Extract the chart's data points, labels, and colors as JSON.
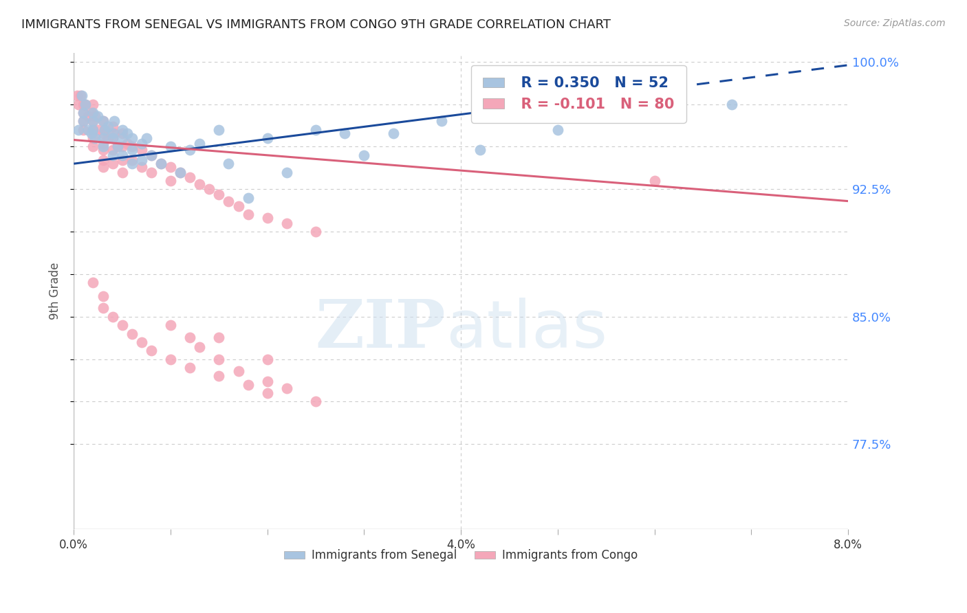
{
  "title": "IMMIGRANTS FROM SENEGAL VS IMMIGRANTS FROM CONGO 9TH GRADE CORRELATION CHART",
  "source": "Source: ZipAtlas.com",
  "ylabel": "9th Grade",
  "xlim": [
    0.0,
    0.08
  ],
  "ylim": [
    0.725,
    1.005
  ],
  "yticks": [
    0.775,
    0.8,
    0.825,
    0.85,
    0.875,
    0.9,
    0.925,
    0.95,
    0.975,
    1.0
  ],
  "ytick_labels": [
    "77.5%",
    "",
    "",
    "85.0%",
    "",
    "",
    "92.5%",
    "",
    "",
    "100.0%"
  ],
  "senegal_color": "#a8c4e0",
  "congo_color": "#f4a7b9",
  "senegal_line_color": "#1a4a9b",
  "congo_line_color": "#d9607a",
  "legend_r_senegal": "R = 0.350",
  "legend_n_senegal": "N = 52",
  "legend_r_congo": "R = -0.101",
  "legend_n_congo": "N = 80",
  "legend_label_senegal": "Immigrants from Senegal",
  "legend_label_congo": "Immigrants from Congo",
  "background_color": "#ffffff",
  "grid_color": "#cccccc",
  "title_color": "#222222",
  "axis_label_color": "#555555",
  "tick_color_right": "#4488ff",
  "senegal_x": [
    0.0005,
    0.0008,
    0.001,
    0.001,
    0.0012,
    0.0015,
    0.0018,
    0.002,
    0.002,
    0.002,
    0.0022,
    0.0025,
    0.003,
    0.003,
    0.003,
    0.0032,
    0.0035,
    0.004,
    0.004,
    0.004,
    0.0042,
    0.0045,
    0.005,
    0.005,
    0.005,
    0.0055,
    0.006,
    0.006,
    0.006,
    0.007,
    0.007,
    0.0075,
    0.008,
    0.009,
    0.01,
    0.011,
    0.012,
    0.013,
    0.015,
    0.016,
    0.018,
    0.02,
    0.022,
    0.025,
    0.028,
    0.03,
    0.033,
    0.038,
    0.042,
    0.05,
    0.06,
    0.068
  ],
  "senegal_y": [
    0.96,
    0.98,
    0.965,
    0.97,
    0.975,
    0.96,
    0.958,
    0.965,
    0.97,
    0.96,
    0.955,
    0.968,
    0.965,
    0.955,
    0.95,
    0.96,
    0.962,
    0.958,
    0.955,
    0.945,
    0.965,
    0.95,
    0.96,
    0.955,
    0.945,
    0.958,
    0.955,
    0.948,
    0.94,
    0.952,
    0.942,
    0.955,
    0.945,
    0.94,
    0.95,
    0.935,
    0.948,
    0.952,
    0.96,
    0.94,
    0.92,
    0.955,
    0.935,
    0.96,
    0.958,
    0.945,
    0.958,
    0.965,
    0.948,
    0.96,
    0.972,
    0.975
  ],
  "congo_x": [
    0.0003,
    0.0005,
    0.0007,
    0.001,
    0.001,
    0.001,
    0.001,
    0.0012,
    0.0015,
    0.0018,
    0.002,
    0.002,
    0.002,
    0.002,
    0.002,
    0.0022,
    0.0025,
    0.003,
    0.003,
    0.003,
    0.003,
    0.003,
    0.003,
    0.0032,
    0.0035,
    0.004,
    0.004,
    0.004,
    0.004,
    0.0042,
    0.0045,
    0.005,
    0.005,
    0.005,
    0.005,
    0.0055,
    0.006,
    0.006,
    0.007,
    0.007,
    0.008,
    0.008,
    0.009,
    0.01,
    0.01,
    0.011,
    0.012,
    0.013,
    0.014,
    0.015,
    0.016,
    0.017,
    0.018,
    0.02,
    0.022,
    0.025,
    0.002,
    0.003,
    0.003,
    0.004,
    0.005,
    0.006,
    0.007,
    0.008,
    0.01,
    0.012,
    0.015,
    0.018,
    0.02,
    0.025,
    0.015,
    0.02,
    0.06,
    0.01,
    0.012,
    0.013,
    0.015,
    0.017,
    0.02,
    0.022
  ],
  "congo_y": [
    0.98,
    0.975,
    0.98,
    0.975,
    0.97,
    0.965,
    0.96,
    0.975,
    0.968,
    0.97,
    0.975,
    0.965,
    0.96,
    0.955,
    0.95,
    0.968,
    0.96,
    0.965,
    0.958,
    0.952,
    0.948,
    0.942,
    0.938,
    0.96,
    0.955,
    0.962,
    0.955,
    0.948,
    0.94,
    0.958,
    0.95,
    0.958,
    0.95,
    0.942,
    0.935,
    0.952,
    0.95,
    0.942,
    0.948,
    0.938,
    0.945,
    0.935,
    0.94,
    0.938,
    0.93,
    0.935,
    0.932,
    0.928,
    0.925,
    0.922,
    0.918,
    0.915,
    0.91,
    0.908,
    0.905,
    0.9,
    0.87,
    0.862,
    0.855,
    0.85,
    0.845,
    0.84,
    0.835,
    0.83,
    0.825,
    0.82,
    0.815,
    0.81,
    0.805,
    0.8,
    0.838,
    0.825,
    0.93,
    0.845,
    0.838,
    0.832,
    0.825,
    0.818,
    0.812,
    0.808
  ],
  "senegal_line_x": [
    0.0,
    0.08
  ],
  "senegal_line_y": [
    0.94,
    0.998
  ],
  "congo_line_x": [
    0.0,
    0.08
  ],
  "congo_line_y": [
    0.954,
    0.918
  ]
}
